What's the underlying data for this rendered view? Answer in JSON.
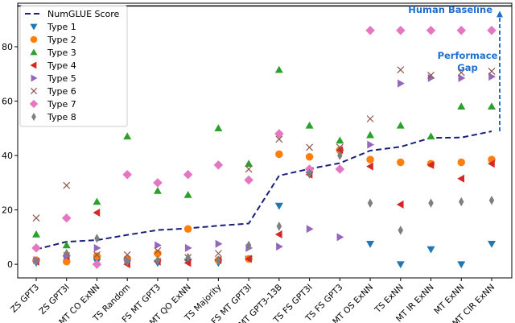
{
  "chart_data": {
    "type": "scatter",
    "title": "",
    "xlabel": "",
    "ylabel": "",
    "ylim": [
      -5,
      96
    ],
    "yticks": [
      0,
      20,
      40,
      60,
      80
    ],
    "grid": false,
    "legend_position": "top-left",
    "categories": [
      "ZS GPT3",
      "ZS GPT3I",
      "MT CO ExNN",
      "TS Random",
      "FS MT GPT3",
      "MT QO ExNN",
      "TS Majority",
      "FS MT GPT3I",
      "MT GPT3-13B",
      "TS FS GPT3I",
      "TS FS GPT3",
      "MT OS ExNN",
      "TS ExNN",
      "MT IR ExNN",
      "MT ExNN",
      "MT CIR ExNN"
    ],
    "line_series": {
      "name": "NumGLUE Score",
      "color": "#1a1f7a",
      "style": "dashed",
      "values": [
        5.5,
        8.3,
        8.9,
        10.8,
        12.6,
        13.2,
        14.2,
        15.0,
        32.6,
        35.1,
        37.2,
        41.8,
        43.2,
        46.5,
        46.6,
        48.9
      ]
    },
    "series": [
      {
        "name": "Type 1",
        "marker": "triangle-down",
        "color": "#1f77b4",
        "values": [
          0.5,
          2.2,
          1.0,
          0.5,
          0.5,
          1.0,
          0.5,
          2.0,
          21.5,
          33.0,
          41.0,
          7.5,
          0.0,
          5.5,
          0.0,
          7.5
        ]
      },
      {
        "name": "Type 2",
        "marker": "circle",
        "color": "#ff7f0e",
        "values": [
          1.5,
          1.0,
          3.0,
          2.0,
          4.0,
          13.0,
          1.5,
          2.0,
          40.5,
          39.5,
          42.0,
          38.5,
          37.5,
          37.0,
          37.5,
          38.5
        ]
      },
      {
        "name": "Type 3",
        "marker": "triangle-up",
        "color": "#2ca02c",
        "values": [
          11.0,
          7.0,
          23.0,
          47.0,
          27.0,
          25.5,
          50.0,
          37.0,
          71.5,
          51.0,
          45.5,
          47.5,
          51.0,
          47.0,
          58.0,
          58.0
        ]
      },
      {
        "name": "Type 4",
        "marker": "triangle-left",
        "color": "#d62728",
        "values": [
          1.0,
          3.0,
          19.0,
          0.0,
          1.0,
          0.5,
          1.5,
          2.0,
          11.0,
          33.0,
          42.0,
          36.0,
          22.0,
          36.5,
          31.5,
          37.0
        ]
      },
      {
        "name": "Type 5",
        "marker": "triangle-right",
        "color": "#9467bd",
        "values": [
          1.5,
          3.0,
          6.0,
          1.5,
          7.0,
          6.0,
          7.5,
          6.0,
          6.5,
          13.0,
          10.0,
          44.0,
          66.5,
          68.5,
          68.5,
          69.0
        ]
      },
      {
        "name": "Type 6",
        "marker": "x",
        "color": "#8c564b",
        "values": [
          17.0,
          29.0,
          3.5,
          3.5,
          5.0,
          2.5,
          4.0,
          35.0,
          46.0,
          43.0,
          43.0,
          53.5,
          71.5,
          69.5,
          70.5,
          71.0
        ]
      },
      {
        "name": "Type 7",
        "marker": "diamond",
        "color": "#e377c2",
        "values": [
          6.0,
          17.0,
          0.0,
          33.0,
          30.0,
          33.0,
          36.5,
          31.0,
          48.0,
          35.0,
          35.0,
          86.0,
          86.0,
          86.0,
          86.0,
          86.0
        ]
      },
      {
        "name": "Type 8",
        "marker": "thin-diamond",
        "color": "#7f7f7f",
        "values": [
          1.0,
          4.0,
          9.5,
          1.0,
          1.5,
          2.5,
          1.5,
          7.0,
          14.0,
          33.5,
          40.0,
          22.5,
          12.5,
          22.5,
          23.0,
          23.5
        ]
      }
    ],
    "reference_line": {
      "label": "Human Baseline",
      "value": 95,
      "color": "#000000"
    },
    "annotations": [
      {
        "text": "Human Baseline",
        "color": "#1f6fd1"
      },
      {
        "text": "Performace",
        "color": "#1f6fd1"
      },
      {
        "text": "Gap",
        "color": "#1f6fd1"
      }
    ]
  }
}
